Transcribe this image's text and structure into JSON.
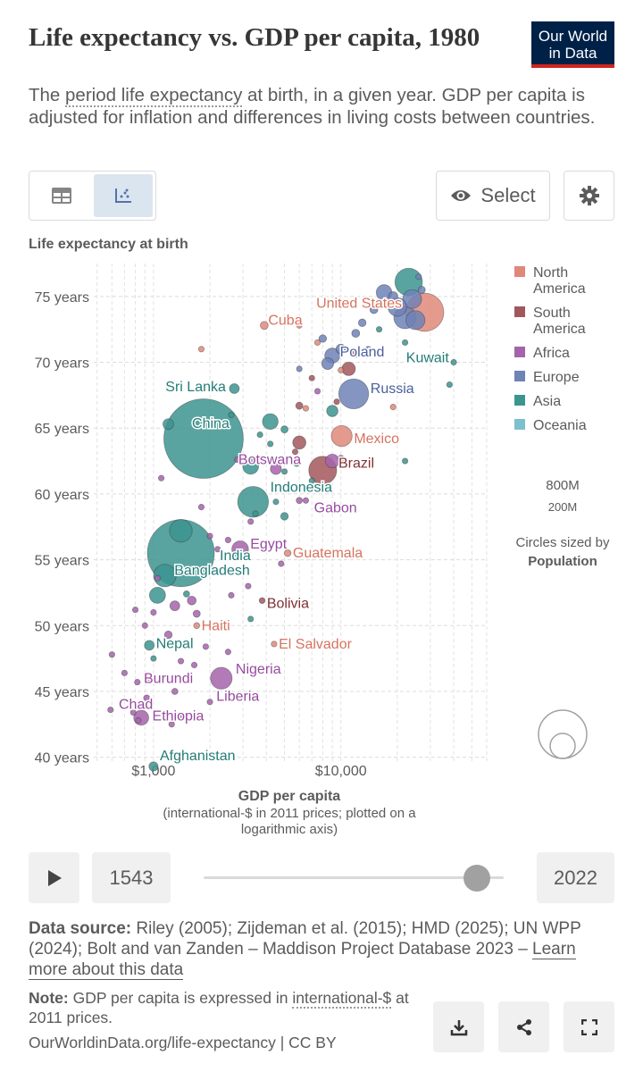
{
  "header": {
    "title": "Life expectancy vs. GDP per capita, 1980",
    "subtitle_pre": "The ",
    "subtitle_link": "period life expectancy",
    "subtitle_post": " at birth, in a given year. GDP per capita is adjusted for inflation and differences in living costs between countries.",
    "logo_line1": "Our World",
    "logo_line2": "in Data"
  },
  "toolbar": {
    "table_icon": "table-icon",
    "chart_icon": "scatter-icon",
    "select_label": "Select",
    "settings_icon": "gear-icon"
  },
  "colors": {
    "North America": "#e0887a",
    "South America": "#a2575c",
    "Africa": "#a464ab",
    "Europe": "#6e83b6",
    "Asia": "#3c948f",
    "Oceania": "#7dbfcc"
  },
  "chart_data": {
    "type": "scatter",
    "ylabel": "Life expectancy at birth",
    "xlabel": "GDP per capita",
    "xlabel_sub": "(international-$ in 2011 prices; plotted on a logarithmic axis)",
    "xscale": "log",
    "xlim": [
      480,
      60000
    ],
    "ylim": [
      39.5,
      77.5
    ],
    "yticks": [
      40,
      45,
      50,
      55,
      60,
      65,
      70,
      75
    ],
    "ytick_labels": [
      "40 years",
      "45 years",
      "50 years",
      "55 years",
      "60 years",
      "65 years",
      "70 years",
      "75 years"
    ],
    "xticks": [
      1000,
      10000
    ],
    "xtick_labels": [
      "$1,000",
      "$10,000"
    ],
    "grid": true,
    "legend_position": "right",
    "legend": [
      "North America",
      "South America",
      "Africa",
      "Europe",
      "Asia",
      "Oceania"
    ],
    "size_legend": {
      "big": "800M",
      "small": "200M",
      "caption": "Circles sized by",
      "caption_bold": "Population"
    },
    "labeled_points": [
      {
        "name": "United States",
        "continent": "North America",
        "gdp": 28000,
        "life": 73.8,
        "pop": 227
      },
      {
        "name": "Kuwait",
        "continent": "Asia",
        "gdp": 22000,
        "life": 71.5,
        "pop": 1.4
      },
      {
        "name": "Cuba",
        "continent": "North America",
        "gdp": 3900,
        "life": 72.8,
        "pop": 9.8
      },
      {
        "name": "Poland",
        "continent": "Europe",
        "gdp": 9000,
        "life": 70.5,
        "pop": 35.6
      },
      {
        "name": "Sri Lanka",
        "continent": "Asia",
        "gdp": 2700,
        "life": 68.0,
        "pop": 15
      },
      {
        "name": "Russia",
        "continent": "Europe",
        "gdp": 11700,
        "life": 67.6,
        "pop": 139
      },
      {
        "name": "China",
        "continent": "Asia",
        "gdp": 1850,
        "life": 64.2,
        "pop": 981
      },
      {
        "name": "Mexico",
        "continent": "North America",
        "gdp": 10100,
        "life": 64.4,
        "pop": 68
      },
      {
        "name": "Botswana",
        "continent": "Africa",
        "gdp": 2800,
        "life": 62.6,
        "pop": 0.9
      },
      {
        "name": "Brazil",
        "continent": "South America",
        "gdp": 8000,
        "life": 61.8,
        "pop": 121
      },
      {
        "name": "Indonesia",
        "continent": "Asia",
        "gdp": 3400,
        "life": 59.4,
        "pop": 147
      },
      {
        "name": "Gabon",
        "continent": "Africa",
        "gdp": 6500,
        "life": 59.5,
        "pop": 0.7
      },
      {
        "name": "India",
        "continent": "Asia",
        "gdp": 1400,
        "life": 55.5,
        "pop": 697
      },
      {
        "name": "Egypt",
        "continent": "Africa",
        "gdp": 2900,
        "life": 55.8,
        "pop": 43
      },
      {
        "name": "Guatemala",
        "continent": "North America",
        "gdp": 5200,
        "life": 55.5,
        "pop": 7
      },
      {
        "name": "Bangladesh",
        "continent": "Asia",
        "gdp": 1150,
        "life": 53.8,
        "pop": 79
      },
      {
        "name": "Bolivia",
        "continent": "South America",
        "gdp": 3800,
        "life": 51.9,
        "pop": 5.4
      },
      {
        "name": "Haiti",
        "continent": "North America",
        "gdp": 1700,
        "life": 50.0,
        "pop": 5.7
      },
      {
        "name": "El Salvador",
        "continent": "North America",
        "gdp": 4400,
        "life": 48.6,
        "pop": 4.6
      },
      {
        "name": "Nepal",
        "continent": "Asia",
        "gdp": 950,
        "life": 48.5,
        "pop": 15
      },
      {
        "name": "Burundi",
        "continent": "Africa",
        "gdp": 820,
        "life": 45.7,
        "pop": 4.1
      },
      {
        "name": "Nigeria",
        "continent": "Africa",
        "gdp": 2300,
        "life": 46.0,
        "pop": 73
      },
      {
        "name": "Liberia",
        "continent": "Africa",
        "gdp": 2000,
        "life": 44.2,
        "pop": 1.9
      },
      {
        "name": "Chad",
        "continent": "Africa",
        "gdp": 590,
        "life": 43.6,
        "pop": 4.5
      },
      {
        "name": "Ethiopia",
        "continent": "Africa",
        "gdp": 860,
        "life": 43.0,
        "pop": 35
      },
      {
        "name": "Afghanistan",
        "continent": "Asia",
        "gdp": 1000,
        "life": 39.3,
        "pop": 13
      }
    ],
    "other_points": [
      {
        "continent": "Asia",
        "gdp": 23000,
        "life": 76.1,
        "pop": 117
      },
      {
        "continent": "Europe",
        "gdp": 24000,
        "life": 74.8,
        "pop": 55
      },
      {
        "continent": "Europe",
        "gdp": 22000,
        "life": 73.4,
        "pop": 78
      },
      {
        "continent": "Europe",
        "gdp": 20000,
        "life": 74.2,
        "pop": 54
      },
      {
        "continent": "Europe",
        "gdp": 25000,
        "life": 73.2,
        "pop": 56
      },
      {
        "continent": "Europe",
        "gdp": 17000,
        "life": 75.3,
        "pop": 38
      },
      {
        "continent": "Europe",
        "gdp": 19000,
        "life": 75.0,
        "pop": 14
      },
      {
        "continent": "Europe",
        "gdp": 27000,
        "life": 75.5,
        "pop": 8
      },
      {
        "continent": "Europe",
        "gdp": 26000,
        "life": 76.5,
        "pop": 4
      },
      {
        "continent": "Europe",
        "gdp": 15000,
        "life": 74.0,
        "pop": 10
      },
      {
        "continent": "Europe",
        "gdp": 13000,
        "life": 73.0,
        "pop": 9
      },
      {
        "continent": "Europe",
        "gdp": 12000,
        "life": 72.2,
        "pop": 10
      },
      {
        "continent": "Europe",
        "gdp": 10000,
        "life": 71.0,
        "pop": 15
      },
      {
        "continent": "Europe",
        "gdp": 8500,
        "life": 69.9,
        "pop": 22
      },
      {
        "continent": "Europe",
        "gdp": 8000,
        "life": 71.8,
        "pop": 9
      },
      {
        "continent": "Europe",
        "gdp": 6000,
        "life": 69.5,
        "pop": 4
      },
      {
        "continent": "Europe",
        "gdp": 14000,
        "life": 71.0,
        "pop": 3
      },
      {
        "continent": "Asia",
        "gdp": 40000,
        "life": 70.0,
        "pop": 0.3
      },
      {
        "continent": "Asia",
        "gdp": 38000,
        "life": 68.3,
        "pop": 1
      },
      {
        "continent": "Asia",
        "gdp": 22000,
        "life": 62.5,
        "pop": 1
      },
      {
        "continent": "Asia",
        "gdp": 16000,
        "life": 72.5,
        "pop": 3
      },
      {
        "continent": "Asia",
        "gdp": 9000,
        "life": 66.3,
        "pop": 20
      },
      {
        "continent": "Asia",
        "gdp": 4200,
        "life": 65.5,
        "pop": 38
      },
      {
        "continent": "Asia",
        "gdp": 5000,
        "life": 64.9,
        "pop": 8
      },
      {
        "continent": "Asia",
        "gdp": 3700,
        "life": 64.5,
        "pop": 2
      },
      {
        "continent": "Asia",
        "gdp": 2600,
        "life": 66.0,
        "pop": 2
      },
      {
        "continent": "Asia",
        "gdp": 1200,
        "life": 65.3,
        "pop": 18
      },
      {
        "continent": "Asia",
        "gdp": 3300,
        "life": 62.1,
        "pop": 39
      },
      {
        "continent": "Asia",
        "gdp": 5000,
        "life": 61.7,
        "pop": 3
      },
      {
        "continent": "Asia",
        "gdp": 5800,
        "life": 62.3,
        "pop": 5
      },
      {
        "continent": "Asia",
        "gdp": 4200,
        "life": 63.8,
        "pop": 2
      },
      {
        "continent": "Asia",
        "gdp": 7000,
        "life": 61.0,
        "pop": 2
      },
      {
        "continent": "Asia",
        "gdp": 4500,
        "life": 59.4,
        "pop": 1.5
      },
      {
        "continent": "Asia",
        "gdp": 5000,
        "life": 58.3,
        "pop": 9
      },
      {
        "continent": "Asia",
        "gdp": 3500,
        "life": 58.5,
        "pop": 4
      },
      {
        "continent": "Asia",
        "gdp": 1400,
        "life": 57.2,
        "pop": 80
      },
      {
        "continent": "Asia",
        "gdp": 1500,
        "life": 52.4,
        "pop": 6
      },
      {
        "continent": "Asia",
        "gdp": 1050,
        "life": 52.3,
        "pop": 40
      },
      {
        "continent": "Asia",
        "gdp": 3300,
        "life": 50.5,
        "pop": 1
      },
      {
        "continent": "Asia",
        "gdp": 1000,
        "life": 47.5,
        "pop": 1
      },
      {
        "continent": "North America",
        "gdp": 1800,
        "life": 71.0,
        "pop": 0.3
      },
      {
        "continent": "North America",
        "gdp": 6000,
        "life": 72.8,
        "pop": 3
      },
      {
        "continent": "North America",
        "gdp": 7500,
        "life": 71.5,
        "pop": 2
      },
      {
        "continent": "North America",
        "gdp": 10000,
        "life": 69.4,
        "pop": 2
      },
      {
        "continent": "North America",
        "gdp": 19000,
        "life": 66.6,
        "pop": 0.2
      },
      {
        "continent": "North America",
        "gdp": 6500,
        "life": 66.5,
        "pop": 5
      },
      {
        "continent": "South America",
        "gdp": 12000,
        "life": 70.7,
        "pop": 11
      },
      {
        "continent": "South America",
        "gdp": 11000,
        "life": 69.5,
        "pop": 28
      },
      {
        "continent": "South America",
        "gdp": 6000,
        "life": 63.9,
        "pop": 27
      },
      {
        "continent": "South America",
        "gdp": 7000,
        "life": 68.8,
        "pop": 3
      },
      {
        "continent": "South America",
        "gdp": 5700,
        "life": 63.2,
        "pop": 3
      },
      {
        "continent": "South America",
        "gdp": 6000,
        "life": 66.7,
        "pop": 8
      },
      {
        "continent": "South America",
        "gdp": 9500,
        "life": 67.0,
        "pop": 2
      },
      {
        "continent": "Africa",
        "gdp": 7500,
        "life": 67.8,
        "pop": 2
      },
      {
        "continent": "Africa",
        "gdp": 9000,
        "life": 62.5,
        "pop": 29
      },
      {
        "continent": "Africa",
        "gdp": 10000,
        "life": 62.7,
        "pop": 6
      },
      {
        "continent": "Africa",
        "gdp": 4500,
        "life": 61.9,
        "pop": 19
      },
      {
        "continent": "Africa",
        "gdp": 6000,
        "life": 59.5,
        "pop": 6
      },
      {
        "continent": "Africa",
        "gdp": 3300,
        "life": 57.9,
        "pop": 5
      },
      {
        "continent": "Africa",
        "gdp": 2200,
        "life": 55.8,
        "pop": 3
      },
      {
        "continent": "Africa",
        "gdp": 1100,
        "life": 61.2,
        "pop": 1
      },
      {
        "continent": "Africa",
        "gdp": 3100,
        "life": 55.2,
        "pop": 2
      },
      {
        "continent": "Africa",
        "gdp": 1800,
        "life": 59.0,
        "pop": 1
      },
      {
        "continent": "Africa",
        "gdp": 2000,
        "life": 56.8,
        "pop": 1
      },
      {
        "continent": "Africa",
        "gdp": 2500,
        "life": 56.5,
        "pop": 0.5
      },
      {
        "continent": "Africa",
        "gdp": 4800,
        "life": 54.7,
        "pop": 2
      },
      {
        "continent": "Africa",
        "gdp": 3200,
        "life": 53.0,
        "pop": 1
      },
      {
        "continent": "Africa",
        "gdp": 2600,
        "life": 52.3,
        "pop": 1
      },
      {
        "continent": "Africa",
        "gdp": 1600,
        "life": 51.9,
        "pop": 12
      },
      {
        "continent": "Africa",
        "gdp": 1300,
        "life": 51.5,
        "pop": 15
      },
      {
        "continent": "Africa",
        "gdp": 1000,
        "life": 51.0,
        "pop": 1
      },
      {
        "continent": "Africa",
        "gdp": 800,
        "life": 51.2,
        "pop": 5
      },
      {
        "continent": "Africa",
        "gdp": 1700,
        "life": 50.9,
        "pop": 8
      },
      {
        "continent": "Africa",
        "gdp": 900,
        "life": 50.0,
        "pop": 3
      },
      {
        "continent": "Africa",
        "gdp": 1200,
        "life": 49.3,
        "pop": 9
      },
      {
        "continent": "Africa",
        "gdp": 1900,
        "life": 48.4,
        "pop": 3
      },
      {
        "continent": "Africa",
        "gdp": 2500,
        "life": 48.0,
        "pop": 2
      },
      {
        "continent": "Africa",
        "gdp": 1400,
        "life": 47.3,
        "pop": 4
      },
      {
        "continent": "Africa",
        "gdp": 1650,
        "life": 47.0,
        "pop": 2
      },
      {
        "continent": "Africa",
        "gdp": 700,
        "life": 46.4,
        "pop": 2
      },
      {
        "continent": "Africa",
        "gdp": 1300,
        "life": 45.0,
        "pop": 6
      },
      {
        "continent": "Africa",
        "gdp": 920,
        "life": 44.5,
        "pop": 6
      },
      {
        "continent": "Africa",
        "gdp": 780,
        "life": 43.4,
        "pop": 2
      },
      {
        "continent": "Africa",
        "gdp": 830,
        "life": 42.8,
        "pop": 3
      },
      {
        "continent": "Africa",
        "gdp": 1250,
        "life": 42.5,
        "pop": 1
      },
      {
        "continent": "Africa",
        "gdp": 1400,
        "life": 43.0,
        "pop": 1
      },
      {
        "continent": "Africa",
        "gdp": 950,
        "life": 45.8,
        "pop": 3
      },
      {
        "continent": "Africa",
        "gdp": 1050,
        "life": 53.6,
        "pop": 4
      },
      {
        "continent": "Africa",
        "gdp": 600,
        "life": 47.8,
        "pop": 1
      }
    ]
  },
  "timeline": {
    "start_year": "1543",
    "end_year": "2022",
    "play_icon": "play-icon",
    "slider_position": 0.93
  },
  "footer": {
    "source_label": "Data source:",
    "source_text": " Riley (2005); Zijdeman et al. (2015); HMD (2025); UN WPP (2024); Bolt and van Zanden – Maddison Project Database 2023 – ",
    "source_link": "Learn more about this data",
    "note_label": "Note:",
    "note_text_pre": " GDP per capita is expressed in ",
    "note_link": "international-$",
    "note_text_post": " at 2011 prices.",
    "url": "OurWorldinData.org/life-expectancy | CC BY",
    "download_icon": "download-icon",
    "share_icon": "share-icon",
    "fullscreen_icon": "fullscreen-icon"
  }
}
